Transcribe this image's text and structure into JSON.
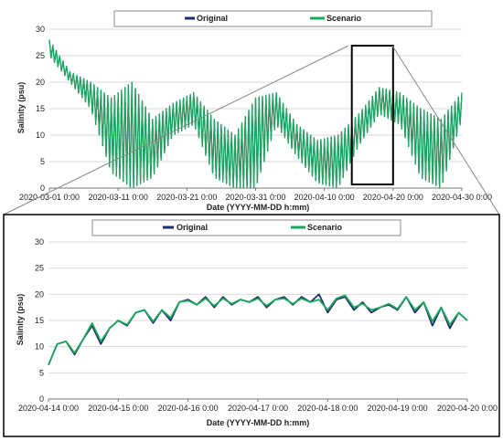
{
  "chart_data": [
    {
      "type": "line",
      "xlabel": "Date (YYYY-MM-DD  h:mm)",
      "ylabel": "Salinity (psu)",
      "ylim": [
        0,
        30
      ],
      "yticks": [
        "0",
        "5",
        "10",
        "15",
        "20",
        "25",
        "30"
      ],
      "xticks": [
        "2020-03-01 0:00",
        "2020-03-11 0:00",
        "2020-03-21 0:00",
        "2020-03-31 0:00",
        "2020-04-10 0:00",
        "2020-04-20 0:00",
        "2020-04-30 0:00"
      ],
      "legend": {
        "placement": "top-center"
      },
      "series": [
        {
          "name": "Original",
          "color": "#1f2f6e",
          "x": [
            "2020-03-01",
            "2020-03-04",
            "2020-03-07",
            "2020-03-10",
            "2020-03-13",
            "2020-03-16",
            "2020-03-19",
            "2020-03-22",
            "2020-03-25",
            "2020-03-28",
            "2020-03-31",
            "2020-04-03",
            "2020-04-06",
            "2020-04-09",
            "2020-04-12",
            "2020-04-15",
            "2020-04-18",
            "2020-04-21",
            "2020-04-24",
            "2020-04-27",
            "2020-04-30"
          ],
          "upper": [
            28,
            22,
            20,
            17,
            20,
            13,
            16,
            18,
            13,
            10,
            17,
            18,
            12,
            9,
            10,
            14,
            19,
            18,
            15,
            13,
            18
          ],
          "lower": [
            25,
            20,
            15,
            3,
            0,
            2,
            10,
            12,
            2,
            0,
            0,
            12,
            6,
            1,
            0,
            8,
            14,
            12,
            2,
            0,
            13
          ]
        },
        {
          "name": "Scenario",
          "color": "#1aa85a",
          "x": [
            "2020-03-01",
            "2020-03-04",
            "2020-03-07",
            "2020-03-10",
            "2020-03-13",
            "2020-03-16",
            "2020-03-19",
            "2020-03-22",
            "2020-03-25",
            "2020-03-28",
            "2020-03-31",
            "2020-04-03",
            "2020-04-06",
            "2020-04-09",
            "2020-04-12",
            "2020-04-15",
            "2020-04-18",
            "2020-04-21",
            "2020-04-24",
            "2020-04-27",
            "2020-04-30"
          ],
          "upper": [
            28,
            22,
            20,
            17,
            20,
            13,
            16,
            18,
            13,
            10,
            17,
            18,
            12,
            9,
            10,
            14,
            19,
            18,
            15,
            13,
            18
          ],
          "lower": [
            25,
            20,
            15,
            3,
            0,
            2,
            10,
            12,
            2,
            0,
            0,
            12,
            6,
            1,
            0,
            8,
            14,
            12,
            2,
            0,
            13
          ]
        }
      ],
      "highlight_window": [
        "2020-04-14",
        "2020-04-20"
      ]
    },
    {
      "type": "line",
      "xlabel": "Date (YYYY-MM-DD  h:mm)",
      "ylabel": "Salinity (psu)",
      "ylim": [
        0,
        30
      ],
      "yticks": [
        "0",
        "5",
        "10",
        "15",
        "20",
        "25",
        "30"
      ],
      "xticks": [
        "2020-04-14 0:00",
        "2020-04-15 0:00",
        "2020-04-16 0:00",
        "2020-04-17 0:00",
        "2020-04-18 0:00",
        "2020-04-19 0:00",
        "2020-04-20 0:00"
      ],
      "legend": {
        "placement": "top-center"
      },
      "series": [
        {
          "name": "Original",
          "color": "#1f2f6e",
          "x": [
            "2020-04-14 0:00",
            "2020-04-14 3:00",
            "2020-04-14 6:00",
            "2020-04-14 9:00",
            "2020-04-14 12:00",
            "2020-04-14 15:00",
            "2020-04-14 18:00",
            "2020-04-14 21:00",
            "2020-04-15 0:00",
            "2020-04-15 3:00",
            "2020-04-15 6:00",
            "2020-04-15 9:00",
            "2020-04-15 12:00",
            "2020-04-15 15:00",
            "2020-04-15 18:00",
            "2020-04-15 21:00",
            "2020-04-16 0:00",
            "2020-04-16 3:00",
            "2020-04-16 6:00",
            "2020-04-16 9:00",
            "2020-04-16 12:00",
            "2020-04-16 15:00",
            "2020-04-16 18:00",
            "2020-04-16 21:00",
            "2020-04-17 0:00",
            "2020-04-17 3:00",
            "2020-04-17 6:00",
            "2020-04-17 9:00",
            "2020-04-17 12:00",
            "2020-04-17 15:00",
            "2020-04-17 18:00",
            "2020-04-17 21:00",
            "2020-04-18 0:00",
            "2020-04-18 3:00",
            "2020-04-18 6:00",
            "2020-04-18 9:00",
            "2020-04-18 12:00",
            "2020-04-18 15:00",
            "2020-04-18 18:00",
            "2020-04-18 21:00",
            "2020-04-19 0:00",
            "2020-04-19 3:00",
            "2020-04-19 6:00",
            "2020-04-19 9:00",
            "2020-04-19 12:00",
            "2020-04-19 15:00",
            "2020-04-19 18:00",
            "2020-04-19 21:00",
            "2020-04-20 0:00"
          ],
          "y": [
            6.5,
            10.5,
            11.0,
            8.5,
            11.5,
            14.0,
            10.5,
            13.5,
            15.0,
            14.0,
            16.5,
            17.0,
            14.5,
            17.0,
            15.0,
            18.5,
            19.0,
            18.0,
            19.5,
            17.5,
            19.5,
            18.0,
            19.0,
            18.5,
            19.5,
            17.5,
            19.0,
            19.5,
            18.0,
            19.5,
            18.5,
            20.0,
            16.5,
            19.0,
            19.5,
            17.0,
            18.5,
            16.5,
            17.5,
            18.0,
            17.0,
            19.5,
            16.5,
            18.5,
            14.0,
            17.5,
            13.5,
            16.5,
            15.0
          ]
        },
        {
          "name": "Scenario",
          "color": "#1aa85a",
          "x": [
            "2020-04-14 0:00",
            "2020-04-14 3:00",
            "2020-04-14 6:00",
            "2020-04-14 9:00",
            "2020-04-14 12:00",
            "2020-04-14 15:00",
            "2020-04-14 18:00",
            "2020-04-14 21:00",
            "2020-04-15 0:00",
            "2020-04-15 3:00",
            "2020-04-15 6:00",
            "2020-04-15 9:00",
            "2020-04-15 12:00",
            "2020-04-15 15:00",
            "2020-04-15 18:00",
            "2020-04-15 21:00",
            "2020-04-16 0:00",
            "2020-04-16 3:00",
            "2020-04-16 6:00",
            "2020-04-16 9:00",
            "2020-04-16 12:00",
            "2020-04-16 15:00",
            "2020-04-16 18:00",
            "2020-04-16 21:00",
            "2020-04-17 0:00",
            "2020-04-17 3:00",
            "2020-04-17 6:00",
            "2020-04-17 9:00",
            "2020-04-17 12:00",
            "2020-04-17 15:00",
            "2020-04-17 18:00",
            "2020-04-17 21:00",
            "2020-04-18 0:00",
            "2020-04-18 3:00",
            "2020-04-18 6:00",
            "2020-04-18 9:00",
            "2020-04-18 12:00",
            "2020-04-18 15:00",
            "2020-04-18 18:00",
            "2020-04-18 21:00",
            "2020-04-19 0:00",
            "2020-04-19 3:00",
            "2020-04-19 6:00",
            "2020-04-19 9:00",
            "2020-04-19 12:00",
            "2020-04-19 15:00",
            "2020-04-19 18:00",
            "2020-04-19 21:00",
            "2020-04-20 0:00"
          ],
          "y": [
            6.5,
            10.5,
            11.0,
            8.8,
            11.5,
            14.5,
            11.0,
            13.5,
            15.0,
            14.2,
            16.5,
            17.0,
            14.8,
            17.0,
            15.5,
            18.5,
            18.8,
            18.0,
            19.2,
            17.8,
            19.2,
            18.2,
            19.0,
            18.5,
            19.2,
            17.8,
            19.0,
            19.2,
            18.2,
            19.2,
            18.5,
            19.0,
            17.0,
            19.2,
            19.8,
            17.5,
            18.2,
            17.0,
            17.5,
            18.2,
            17.2,
            19.5,
            17.0,
            18.5,
            14.8,
            17.5,
            14.2,
            16.5,
            15.0
          ]
        }
      ]
    }
  ]
}
